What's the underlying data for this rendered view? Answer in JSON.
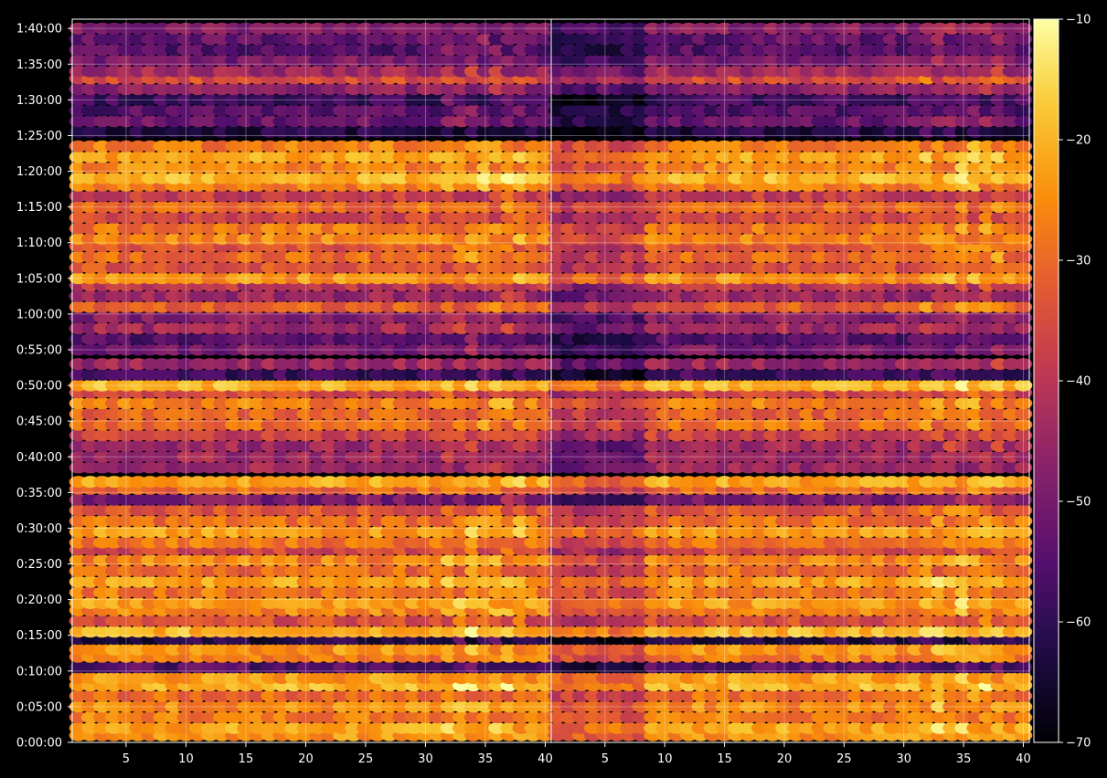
{
  "chart_data": {
    "type": "heatmap",
    "title": "",
    "panels": 2,
    "x_ticks": [
      5,
      10,
      15,
      20,
      25,
      30,
      35,
      40
    ],
    "x_tick_labels": [
      "5",
      "10",
      "15",
      "20",
      "25",
      "30",
      "35",
      "40"
    ],
    "x_range": [
      1,
      40
    ],
    "y_tick_labels": [
      "0:00:00",
      "0:05:00",
      "0:10:00",
      "0:15:00",
      "0:20:00",
      "0:25:00",
      "0:30:00",
      "0:35:00",
      "0:40:00",
      "0:45:00",
      "0:50:00",
      "0:55:00",
      "1:00:00",
      "1:05:00",
      "1:10:00",
      "1:15:00",
      "1:20:00",
      "1:25:00",
      "1:30:00",
      "1:35:00",
      "1:40:00"
    ],
    "y_range_minutes": [
      0,
      101.3
    ],
    "colorbar": {
      "colormap": "inferno",
      "range": [
        -70,
        -10
      ],
      "ticks": [
        -70,
        -60,
        -50,
        -40,
        -30,
        -20,
        -10
      ],
      "tick_labels": [
        "−70",
        "−60",
        "−50",
        "−40",
        "−30",
        "−20",
        "−10"
      ]
    },
    "grid": true,
    "row_bands": [
      {
        "minutes": 1.0,
        "level": -24
      },
      {
        "minutes": 2.0,
        "level": -22
      },
      {
        "minutes": 3.5,
        "level": -27
      },
      {
        "minutes": 5.0,
        "level": -25
      },
      {
        "minutes": 6.5,
        "level": -30
      },
      {
        "minutes": 8.0,
        "level": -20
      },
      {
        "minutes": 9.0,
        "level": -23
      },
      {
        "minutes": 10.5,
        "level": -55
      },
      {
        "minutes": 12.0,
        "level": -27
      },
      {
        "minutes": 13.0,
        "level": -24
      },
      {
        "minutes": 14.5,
        "level": -62
      },
      {
        "minutes": 15.5,
        "level": -20
      },
      {
        "minutes": 17.0,
        "level": -35
      },
      {
        "minutes": 18.5,
        "level": -26
      },
      {
        "minutes": 19.5,
        "level": -23
      },
      {
        "minutes": 21.0,
        "level": -28
      },
      {
        "minutes": 22.5,
        "level": -22
      },
      {
        "minutes": 24.0,
        "level": -30
      },
      {
        "minutes": 25.5,
        "level": -26
      },
      {
        "minutes": 27.0,
        "level": -36
      },
      {
        "minutes": 28.0,
        "level": -28
      },
      {
        "minutes": 29.5,
        "level": -23
      },
      {
        "minutes": 31.0,
        "level": -29
      },
      {
        "minutes": 32.5,
        "level": -33
      },
      {
        "minutes": 34.0,
        "level": -50
      },
      {
        "minutes": 35.5,
        "level": -30
      },
      {
        "minutes": 36.5,
        "level": -22
      },
      {
        "minutes": 38.5,
        "level": -45
      },
      {
        "minutes": 40.0,
        "level": -44
      },
      {
        "minutes": 41.5,
        "level": -44
      },
      {
        "minutes": 43.0,
        "level": -37
      },
      {
        "minutes": 44.5,
        "level": -29
      },
      {
        "minutes": 46.0,
        "level": -31
      },
      {
        "minutes": 47.5,
        "level": -27
      },
      {
        "minutes": 49.0,
        "level": -36
      },
      {
        "minutes": 50.0,
        "level": -20
      },
      {
        "minutes": 51.5,
        "level": -58
      },
      {
        "minutes": 53.0,
        "level": -45
      },
      {
        "minutes": 55.0,
        "level": -50
      },
      {
        "minutes": 56.5,
        "level": -55
      },
      {
        "minutes": 58.0,
        "level": -44
      },
      {
        "minutes": 59.5,
        "level": -48
      },
      {
        "minutes": 61.0,
        "level": -32
      },
      {
        "minutes": 62.5,
        "level": -45
      },
      {
        "minutes": 64.0,
        "level": -40
      },
      {
        "minutes": 65.0,
        "level": -24
      },
      {
        "minutes": 66.5,
        "level": -34
      },
      {
        "minutes": 68.0,
        "level": -30
      },
      {
        "minutes": 69.5,
        "level": -33
      },
      {
        "minutes": 70.5,
        "level": -26
      },
      {
        "minutes": 72.0,
        "level": -28
      },
      {
        "minutes": 73.5,
        "level": -36
      },
      {
        "minutes": 75.0,
        "level": -30
      },
      {
        "minutes": 76.5,
        "level": -38
      },
      {
        "minutes": 78.0,
        "level": -27
      },
      {
        "minutes": 79.0,
        "level": -20
      },
      {
        "minutes": 80.5,
        "level": -26
      },
      {
        "minutes": 82.0,
        "level": -22
      },
      {
        "minutes": 83.5,
        "level": -27
      },
      {
        "minutes": 85.5,
        "level": -62
      },
      {
        "minutes": 87.0,
        "level": -52
      },
      {
        "minutes": 88.5,
        "level": -55
      },
      {
        "minutes": 90.0,
        "level": -58
      },
      {
        "minutes": 91.5,
        "level": -47
      },
      {
        "minutes": 93.0,
        "level": -35
      },
      {
        "minutes": 94.0,
        "level": -44
      },
      {
        "minutes": 95.5,
        "level": -50
      },
      {
        "minutes": 97.0,
        "level": -55
      },
      {
        "minutes": 98.5,
        "level": -53
      },
      {
        "minutes": 100.0,
        "level": -48
      }
    ]
  }
}
